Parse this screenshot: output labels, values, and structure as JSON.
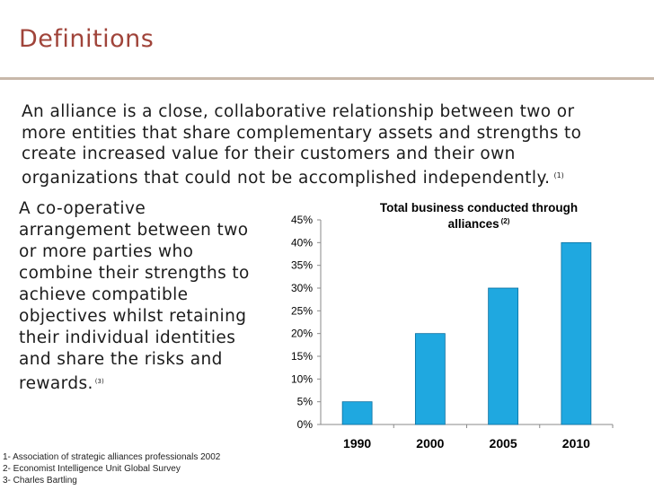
{
  "slide": {
    "title": "Definitions",
    "definition1": {
      "text": "An alliance is a close, collaborative relationship between two or more entities that share complementary assets and strengths to create increased value for their customers and their own organizations that could not be accomplished independently.",
      "ref": "(1)"
    },
    "definition2": {
      "text": "A co-operative arrangement between two or more parties who combine their strengths to achieve compatible objectives whilst retaining their individual identities and share the risks and rewards.",
      "ref": "(3)"
    },
    "footnotes": [
      "1- Association of strategic alliances professionals 2002",
      "2- Economist Intelligence Unit Global Survey",
      "3- Charles Bartling"
    ]
  },
  "colors": {
    "title": "#a0443a",
    "bar_fill": "#1fa8e0",
    "bar_stroke": "#0a6fa0"
  },
  "chart_data": {
    "type": "bar",
    "title": "Total business conducted through alliances",
    "title_ref": "(2)",
    "categories": [
      "1990",
      "2000",
      "2005",
      "2010"
    ],
    "values": [
      5,
      20,
      30,
      40
    ],
    "ylim": [
      0,
      45
    ],
    "yticks": [
      "0%",
      "5%",
      "10%",
      "15%",
      "20%",
      "25%",
      "30%",
      "35%",
      "40%",
      "45%"
    ],
    "xlabel": "",
    "ylabel": "",
    "grid": false
  }
}
